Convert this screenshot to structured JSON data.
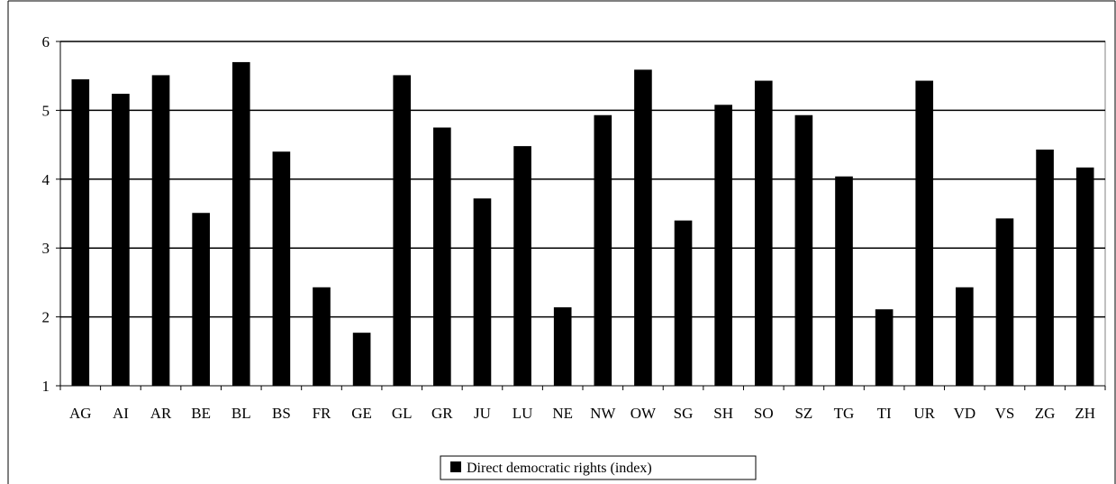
{
  "chart_data": {
    "type": "bar",
    "title": "",
    "xlabel": "",
    "ylabel": "",
    "ylim": [
      1,
      6
    ],
    "yticks": [
      1,
      2,
      3,
      4,
      5,
      6
    ],
    "grid": "horizontal",
    "legend_position": "bottom",
    "categories": [
      "AG",
      "AI",
      "AR",
      "BE",
      "BL",
      "BS",
      "FR",
      "GE",
      "GL",
      "GR",
      "JU",
      "LU",
      "NE",
      "NW",
      "OW",
      "SG",
      "SH",
      "SO",
      "SZ",
      "TG",
      "TI",
      "UR",
      "VD",
      "VS",
      "ZG",
      "ZH"
    ],
    "series": [
      {
        "name": "Direct democratic rights (index)",
        "color": "#000000",
        "values": [
          5.45,
          5.24,
          5.51,
          3.51,
          5.7,
          4.4,
          2.43,
          1.77,
          5.51,
          4.75,
          3.72,
          4.48,
          2.14,
          4.93,
          5.59,
          3.4,
          5.08,
          5.43,
          4.93,
          4.04,
          2.11,
          5.43,
          2.43,
          3.43,
          4.43,
          4.17
        ]
      }
    ]
  }
}
